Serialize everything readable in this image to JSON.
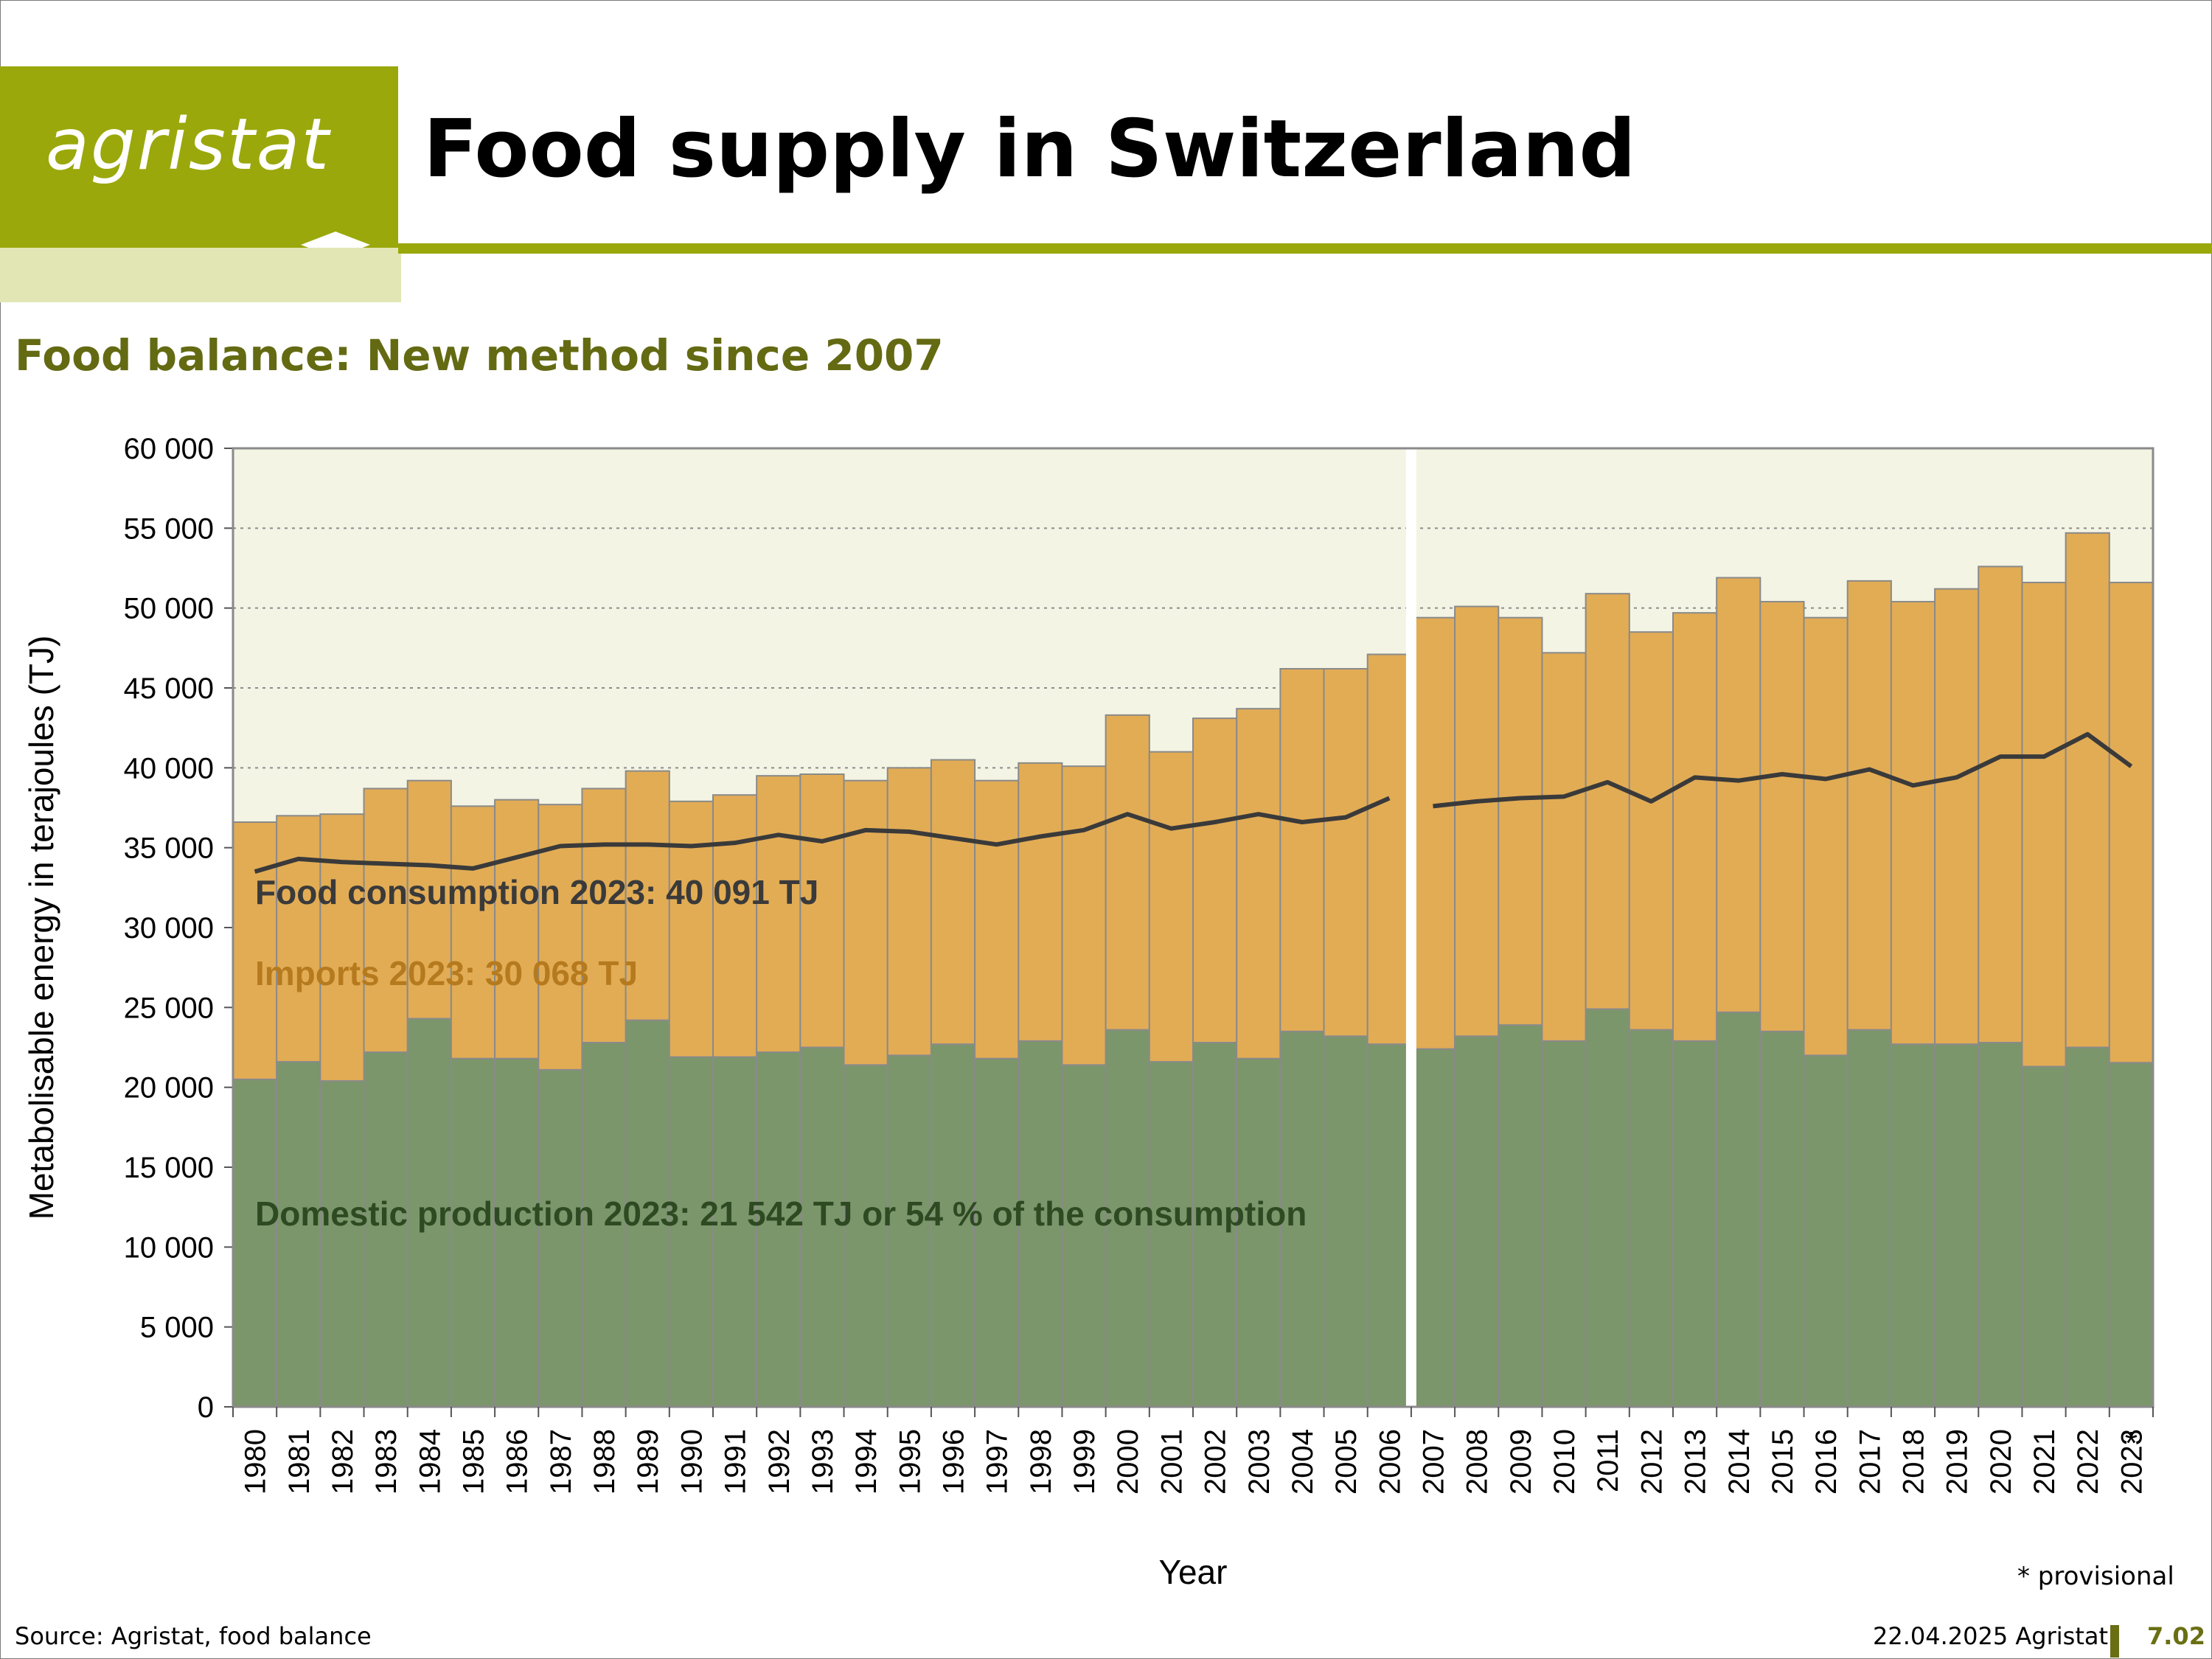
{
  "header": {
    "logo_text": "agristat",
    "title": "Food supply in Switzerland",
    "subtitle": "Food balance: New method since 2007"
  },
  "footer": {
    "source": "Source: Agristat, food balance",
    "date_org": "22.04.2025 Agristat",
    "page": "7.02",
    "provisional_note": "* provisional"
  },
  "colors": {
    "brand": "#9aa80b",
    "brand_light": "#e2e6b4",
    "domestic": "#7b966b",
    "imports": "#e2ac55",
    "consumption_line": "#3a3a3a",
    "plot_bg": "#f3f4e3"
  },
  "chart_data": {
    "type": "bar",
    "stacked": true,
    "xlabel": "Year",
    "ylabel": "Metabolisable energy in terajoules (TJ)",
    "ylim": [
      0,
      60000
    ],
    "yticks": [
      0,
      5000,
      10000,
      15000,
      20000,
      25000,
      30000,
      35000,
      40000,
      45000,
      50000,
      55000,
      60000
    ],
    "ytick_labels": [
      "0",
      "5 000",
      "10 000",
      "15 000",
      "20 000",
      "25 000",
      "30 000",
      "35 000",
      "40 000",
      "45 000",
      "50 000",
      "55 000",
      "60 000"
    ],
    "grid": "horizontal dotted",
    "break_after": "2006",
    "provisional_marker": "*",
    "provisional_category": "2023",
    "categories": [
      "1980",
      "1981",
      "1982",
      "1983",
      "1984",
      "1985",
      "1986",
      "1987",
      "1988",
      "1989",
      "1990",
      "1991",
      "1992",
      "1993",
      "1994",
      "1995",
      "1996",
      "1997",
      "1998",
      "1999",
      "2000",
      "2001",
      "2002",
      "2003",
      "2004",
      "2005",
      "2006",
      "2007",
      "2008",
      "2009",
      "2010",
      "2011",
      "2012",
      "2013",
      "2014",
      "2015",
      "2016",
      "2017",
      "2018",
      "2019",
      "2020",
      "2021",
      "2022",
      "2023"
    ],
    "stack_totals": [
      36600,
      37000,
      37100,
      38700,
      39200,
      37600,
      38000,
      37700,
      38700,
      39800,
      37900,
      38300,
      39500,
      39600,
      39200,
      40000,
      40500,
      39200,
      40300,
      40100,
      43300,
      41000,
      43100,
      43700,
      46200,
      46200,
      47100,
      49400,
      50100,
      49400,
      47200,
      50900,
      48500,
      49700,
      51900,
      50400,
      49400,
      51700,
      50400,
      51200,
      52600,
      51600,
      54700,
      51600
    ],
    "annotations": {
      "consumption": "Food consumption 2023: 40 091 TJ",
      "imports": "Imports 2023: 30 068 TJ",
      "domestic": "Domestic production 2023: 21 542 TJ or 54 % of the consumption"
    },
    "series": [
      {
        "name": "Domestic production",
        "kind": "bar",
        "values": [
          20500,
          21600,
          20400,
          22200,
          24300,
          21800,
          21800,
          21100,
          22800,
          24200,
          21900,
          21900,
          22200,
          22500,
          21400,
          22000,
          22700,
          21800,
          22900,
          21400,
          23600,
          21600,
          22800,
          21800,
          23500,
          23200,
          22700,
          22400,
          23200,
          23900,
          22900,
          24900,
          23600,
          22900,
          24700,
          23500,
          22000,
          23600,
          22700,
          22700,
          22800,
          21300,
          22500,
          21542
        ]
      },
      {
        "name": "Imports",
        "kind": "bar",
        "values": [
          16100,
          15400,
          16700,
          16500,
          14900,
          15800,
          16200,
          16600,
          15900,
          15600,
          16000,
          16400,
          17300,
          17100,
          17800,
          18000,
          17800,
          17400,
          17400,
          18700,
          19700,
          19400,
          20300,
          21900,
          22700,
          23000,
          24400,
          27000,
          26900,
          25500,
          24300,
          26000,
          24900,
          26800,
          27200,
          26900,
          27400,
          28100,
          27700,
          28500,
          29800,
          30300,
          32200,
          30068
        ]
      },
      {
        "name": "Food consumption",
        "kind": "line",
        "values": [
          33500,
          34300,
          34100,
          34000,
          33900,
          33700,
          34400,
          35100,
          35200,
          35200,
          35100,
          35300,
          35800,
          35400,
          36100,
          36000,
          35600,
          35200,
          35700,
          36100,
          37100,
          36200,
          36600,
          37100,
          36600,
          36900,
          38100,
          37600,
          37900,
          38100,
          38200,
          39100,
          37900,
          39400,
          39200,
          39600,
          39300,
          39900,
          38900,
          39400,
          40700,
          40700,
          42100,
          40091
        ]
      }
    ]
  }
}
